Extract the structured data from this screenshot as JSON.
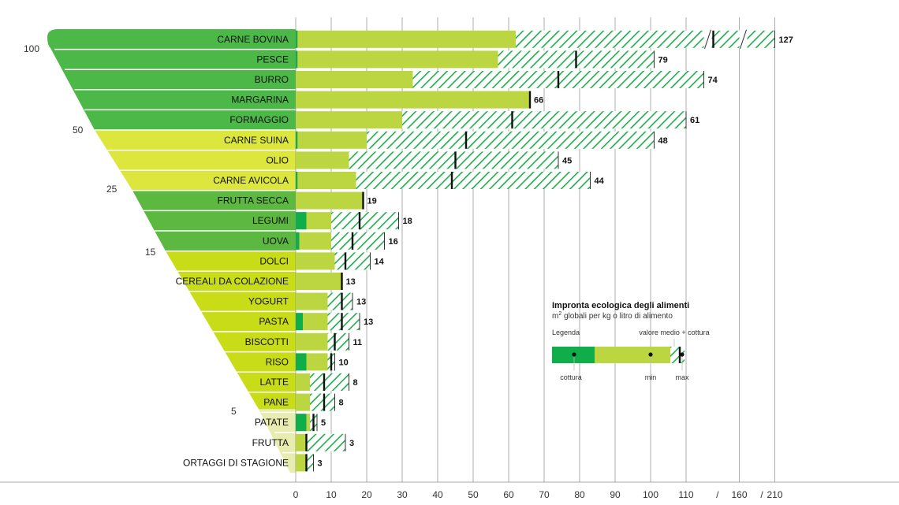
{
  "chart_data": {
    "type": "bar",
    "subtype": "horizontal-range",
    "title": "Impronta ecologica degli alimenti",
    "subtitle_prefix": "m",
    "subtitle_sup": "2",
    "subtitle_suffix": " globali per kg o litro di alimento",
    "x_ticks": [
      "0",
      "10",
      "20",
      "30",
      "40",
      "50",
      "60",
      "70",
      "80",
      "90",
      "100",
      "110",
      "/",
      "160",
      "/",
      "210"
    ],
    "x_tick_values": [
      0,
      10,
      20,
      30,
      40,
      50,
      60,
      70,
      80,
      90,
      100,
      110
    ],
    "axis_break_after": 115,
    "axis_break_ranges": [
      [
        115,
        160
      ],
      [
        160,
        210
      ]
    ],
    "funnel_tick_labels": [
      "100",
      "50",
      "25",
      "15",
      "5"
    ],
    "categories": [
      "CARNE BOVINA",
      "PESCE",
      "BURRO",
      "MARGARINA",
      "FORMAGGIO",
      "CARNE SUINA",
      "OLIO",
      "CARNE AVICOLA",
      "FRUTTA SECCA",
      "LEGUMI",
      "UOVA",
      "DOLCI",
      "CEREALI DA COLAZIONE",
      "YOGURT",
      "PASTA",
      "BISCOTTI",
      "RISO",
      "LATTE",
      "PANE",
      "PATATE",
      "FRUTTA",
      "ORTAGGI DI STAGIONE"
    ],
    "groups": [
      {
        "label": "100",
        "color": "#4cb848",
        "from": 0,
        "to": 4
      },
      {
        "label": "50",
        "color": "#dde63c",
        "from": 5,
        "to": 7
      },
      {
        "label": "25",
        "color": "#5cb840",
        "from": 8,
        "to": 10
      },
      {
        "label": "15",
        "color": "#c9dc18",
        "from": 11,
        "to": 19
      },
      {
        "label": "5",
        "color": "#e8ecb0",
        "from": 19,
        "to": 21
      }
    ],
    "series": [
      {
        "name": "cottura",
        "values": [
          0.5,
          0.5,
          0,
          0,
          0,
          0.5,
          0,
          0.5,
          0,
          3,
          1,
          0,
          0,
          0,
          2,
          0,
          3,
          0,
          0,
          3,
          0,
          0
        ]
      },
      {
        "name": "min",
        "values": [
          62,
          57,
          33,
          66,
          30,
          20,
          15,
          17,
          19,
          10,
          10,
          11,
          13,
          9,
          9,
          9,
          9,
          4,
          4,
          4,
          3,
          3
        ]
      },
      {
        "name": "valore medio + cottura",
        "values": [
          127,
          79,
          74,
          66,
          61,
          48,
          45,
          44,
          19,
          18,
          16,
          14,
          13,
          13,
          13,
          11,
          10,
          8,
          8,
          5,
          3,
          3
        ]
      },
      {
        "name": "max",
        "values": [
          210,
          101,
          115,
          66,
          110,
          101,
          74,
          83,
          19,
          29,
          25,
          21,
          13,
          16,
          18,
          15,
          11,
          15,
          11,
          6,
          14,
          5
        ]
      }
    ],
    "value_labels": [
      "127",
      "79",
      "74",
      "66",
      "61",
      "48",
      "45",
      "44",
      "19",
      "18",
      "16",
      "14",
      "13",
      "13",
      "13",
      "11",
      "10",
      "8",
      "8",
      "5",
      "3",
      "3"
    ],
    "legend": {
      "title": "Legenda",
      "caption_top": "valore medio + cottura",
      "labels": [
        "cottura",
        "min",
        "max"
      ],
      "sample": {
        "cottura": 0,
        "green_end": 16,
        "min": 25,
        "avg": 27,
        "max": 28
      }
    },
    "colors": {
      "cooking": "#0fae4b",
      "base": "#bcd641",
      "hatch_line": "#1eae4b",
      "hatch_bg": "#ffffff",
      "grid": "#8a8a8a",
      "marker": "#111111",
      "label_text": "#111111"
    }
  }
}
